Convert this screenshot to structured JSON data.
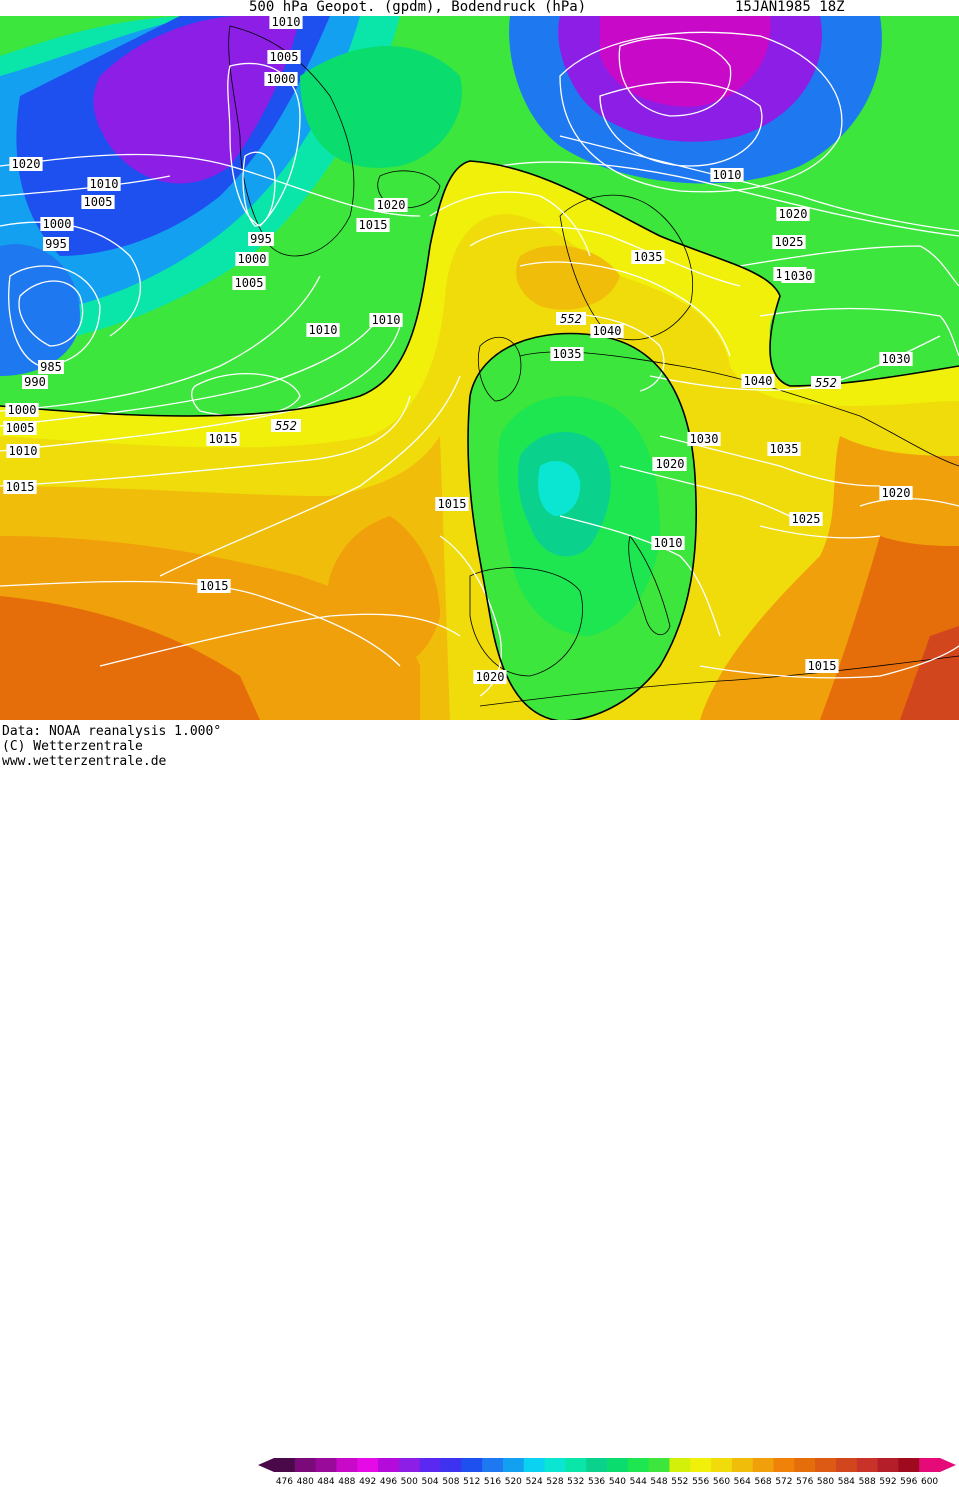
{
  "header": {
    "title": "500 hPa Geopot. (gpdm), Bodendruck (hPa)",
    "date": "15JAN1985 18Z"
  },
  "footer": {
    "data_line": "Data: NOAA reanalysis 1.000°",
    "copyright_line": "(C) Wetterzentrale",
    "url_line": "www.wetterzentrale.de"
  },
  "legend": {
    "values": [
      476,
      480,
      484,
      488,
      492,
      496,
      500,
      504,
      508,
      512,
      516,
      520,
      524,
      528,
      532,
      536,
      540,
      544,
      548,
      552,
      556,
      560,
      564,
      568,
      572,
      576,
      580,
      584,
      588,
      592,
      596,
      600
    ],
    "colors": [
      "#4a0a4a",
      "#7a0a7a",
      "#9a0a9a",
      "#c80ac8",
      "#e60ae6",
      "#b40adc",
      "#8c1ee6",
      "#5a28f0",
      "#3c32f0",
      "#1e50f0",
      "#1e78f0",
      "#14a0f0",
      "#0ad2f0",
      "#0ae6d2",
      "#0ae6aa",
      "#0ad28c",
      "#0adc6e",
      "#1ee650",
      "#3ce63c",
      "#d2f00a",
      "#f0f00a",
      "#f0dc0a",
      "#f0be0a",
      "#f0a00a",
      "#f0820a",
      "#e66e0a",
      "#dc5a14",
      "#d2461e",
      "#c83228",
      "#b41e28",
      "#a00a1e",
      "#e60a78"
    ]
  },
  "map": {
    "fill_levels": [
      548,
      552,
      556,
      560,
      564,
      568,
      572,
      576,
      580,
      584,
      588,
      592
    ],
    "special_contour_label": "552",
    "isobar_labels": [
      "1010",
      "1005",
      "1000",
      "1020",
      "1010",
      "1005",
      "1000",
      "995",
      "1000",
      "1005",
      "995",
      "1020",
      "1015",
      "1010",
      "1010",
      "985",
      "990",
      "1000",
      "1005",
      "1010",
      "1015",
      "1015",
      "1015",
      "1025",
      "1015",
      "1020",
      "1035",
      "1040",
      "1035",
      "1010",
      "1020",
      "1025",
      "1030",
      "1040",
      "1030",
      "1035",
      "1025",
      "1020",
      "1030",
      "1025",
      "1020",
      "1010",
      "1015",
      "1020"
    ]
  }
}
